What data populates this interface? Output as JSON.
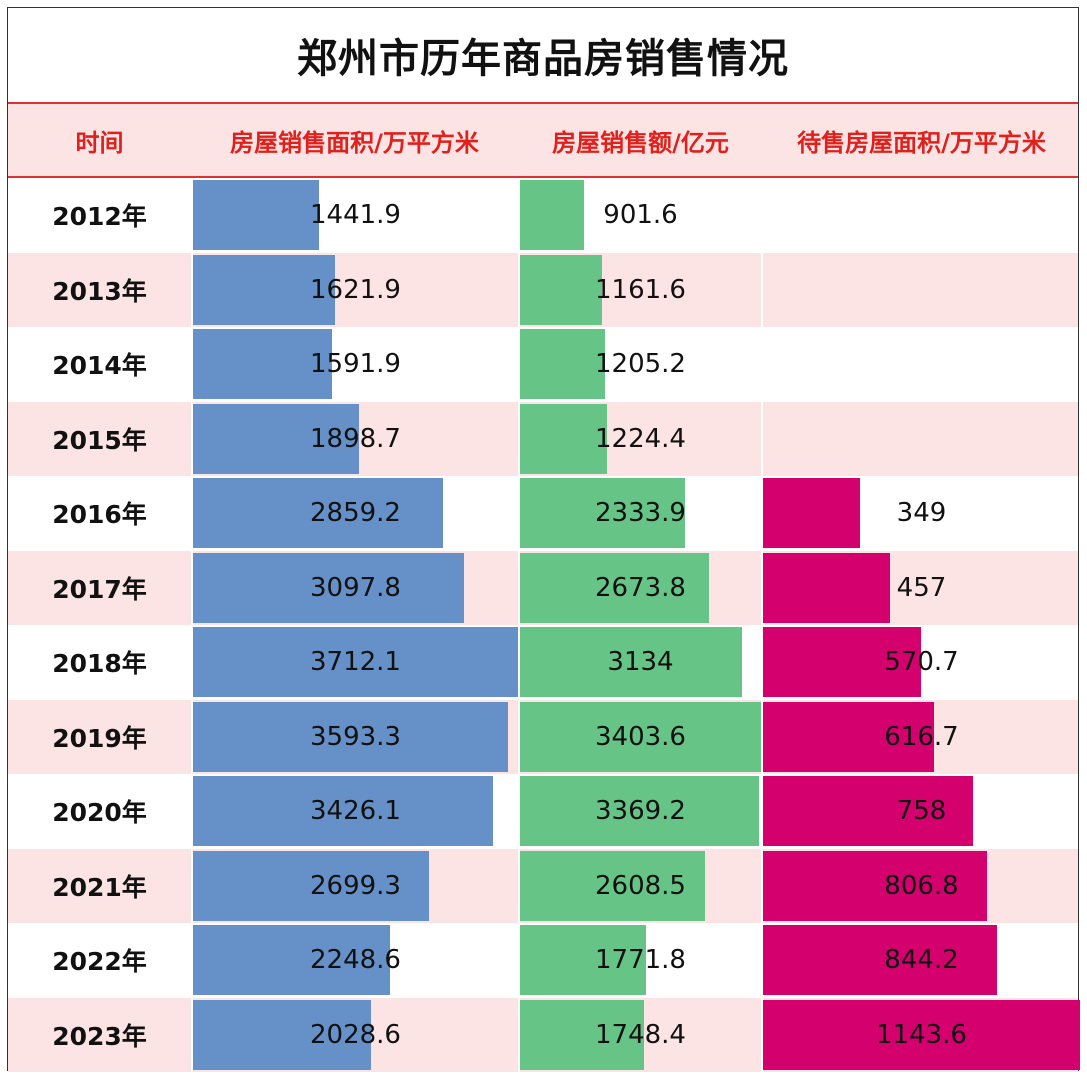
{
  "chart_data": {
    "type": "table",
    "title": "郑州市历年商品房销售情况",
    "headers": [
      "时间",
      "房屋销售面积/万平方米",
      "房屋销售额/亿元",
      "待售房屋面积/万平方米"
    ],
    "categories": [
      "2012年",
      "2013年",
      "2014年",
      "2015年",
      "2016年",
      "2017年",
      "2018年",
      "2019年",
      "2020年",
      "2021年",
      "2022年",
      "2023年"
    ],
    "series": [
      {
        "values": [
          1441.9,
          1621.9,
          1591.9,
          1898.7,
          2859.2,
          3097.8,
          3712.1,
          3593.3,
          3426.1,
          2699.3,
          2248.6,
          2028.6
        ],
        "color": "#6690c8",
        "max": 3712.1
      },
      {
        "values": [
          901.6,
          1161.6,
          1205.2,
          1224.4,
          2333.9,
          2673.8,
          3134,
          3403.6,
          3369.2,
          2608.5,
          1771.8,
          1748.4
        ],
        "color": "#66c486",
        "max": 3403.6
      },
      {
        "values": [
          null,
          null,
          null,
          null,
          349,
          457,
          570.7,
          616.7,
          758,
          806.8,
          844.2,
          1143.6
        ],
        "color": "#d4006e",
        "max": 1143.6
      }
    ]
  }
}
